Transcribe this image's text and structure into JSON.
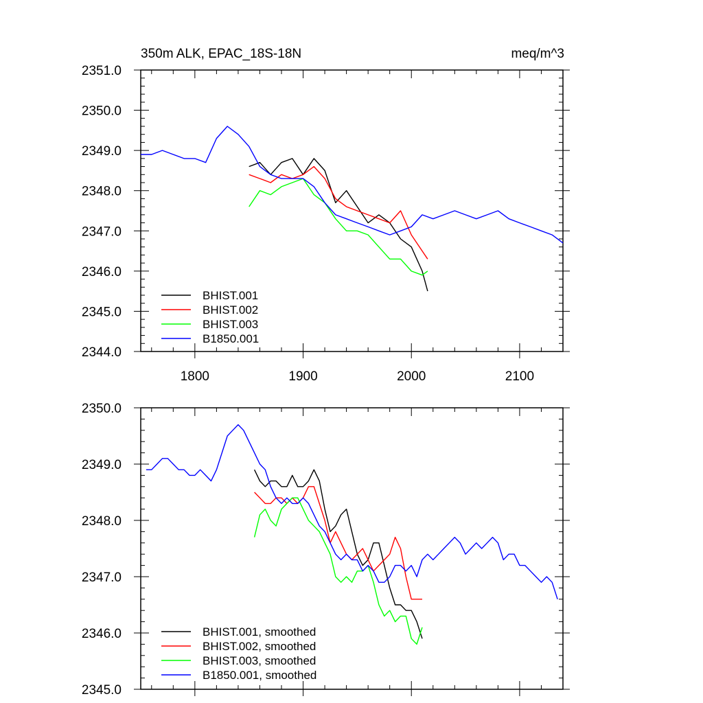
{
  "chart_data": [
    {
      "type": "line",
      "title": "350m ALK, EPAC_18S-18N",
      "units": "meq/m^3",
      "xlim": [
        1750,
        2140
      ],
      "ylim": [
        2344.0,
        2351.0
      ],
      "xticks": [
        1800,
        1900,
        2000,
        2100
      ],
      "xtick_labels": [
        "1800",
        "1900",
        "2000",
        "2100"
      ],
      "yticks": [
        2344.0,
        2345.0,
        2346.0,
        2347.0,
        2348.0,
        2349.0,
        2350.0,
        2351.0
      ],
      "ytick_labels": [
        "2344.0",
        "2345.0",
        "2346.0",
        "2347.0",
        "2348.0",
        "2349.0",
        "2350.0",
        "2351.0"
      ],
      "grid": false,
      "legend_position": "bottom-left",
      "series": [
        {
          "name": "BHIST.001",
          "color": "#000000",
          "x": [
            1850,
            1860,
            1870,
            1880,
            1890,
            1900,
            1910,
            1920,
            1930,
            1940,
            1950,
            1960,
            1970,
            1980,
            1990,
            2000,
            2010,
            2015
          ],
          "y": [
            2348.6,
            2348.7,
            2348.4,
            2348.7,
            2348.8,
            2348.4,
            2348.8,
            2348.5,
            2347.7,
            2348.0,
            2347.6,
            2347.2,
            2347.4,
            2347.2,
            2346.8,
            2346.6,
            2346.0,
            2345.5
          ]
        },
        {
          "name": "BHIST.002",
          "color": "#ff0000",
          "x": [
            1850,
            1860,
            1870,
            1880,
            1890,
            1900,
            1910,
            1920,
            1930,
            1940,
            1950,
            1960,
            1970,
            1980,
            1990,
            2000,
            2010,
            2015
          ],
          "y": [
            2348.4,
            2348.3,
            2348.2,
            2348.4,
            2348.3,
            2348.4,
            2348.6,
            2348.3,
            2347.8,
            2347.6,
            2347.5,
            2347.4,
            2347.3,
            2347.2,
            2347.5,
            2346.9,
            2346.5,
            2346.3
          ]
        },
        {
          "name": "BHIST.003",
          "color": "#00ff00",
          "x": [
            1850,
            1860,
            1870,
            1880,
            1890,
            1900,
            1910,
            1920,
            1930,
            1940,
            1950,
            1960,
            1970,
            1980,
            1990,
            2000,
            2010,
            2015
          ],
          "y": [
            2347.6,
            2348.0,
            2347.9,
            2348.1,
            2348.2,
            2348.3,
            2347.9,
            2347.7,
            2347.3,
            2347.0,
            2347.0,
            2346.9,
            2346.6,
            2346.3,
            2346.3,
            2346.0,
            2345.9,
            2346.0
          ]
        },
        {
          "name": "B1850.001",
          "color": "#0000ff",
          "x": [
            1750,
            1760,
            1770,
            1780,
            1790,
            1800,
            1810,
            1820,
            1830,
            1840,
            1850,
            1860,
            1870,
            1880,
            1890,
            1900,
            1910,
            1920,
            1930,
            1940,
            1950,
            1960,
            1970,
            1980,
            1990,
            2000,
            2010,
            2020,
            2030,
            2040,
            2050,
            2060,
            2070,
            2080,
            2090,
            2100,
            2110,
            2120,
            2130,
            2140
          ],
          "y": [
            2348.9,
            2348.9,
            2349.0,
            2348.9,
            2348.8,
            2348.8,
            2348.7,
            2349.3,
            2349.6,
            2349.4,
            2349.1,
            2348.6,
            2348.4,
            2348.3,
            2348.3,
            2348.3,
            2348.1,
            2347.7,
            2347.4,
            2347.3,
            2347.2,
            2347.1,
            2347.0,
            2346.9,
            2347.0,
            2347.1,
            2347.4,
            2347.3,
            2347.4,
            2347.5,
            2347.4,
            2347.3,
            2347.4,
            2347.5,
            2347.3,
            2347.2,
            2347.1,
            2347.0,
            2346.9,
            2346.7
          ]
        }
      ]
    },
    {
      "type": "line",
      "xlim": [
        1750,
        2140
      ],
      "ylim": [
        2345.0,
        2350.0
      ],
      "xticks": [
        1800,
        1900,
        2000,
        2100
      ],
      "yticks": [
        2345.0,
        2346.0,
        2347.0,
        2348.0,
        2349.0,
        2350.0
      ],
      "ytick_labels": [
        "2345.0",
        "2346.0",
        "2347.0",
        "2348.0",
        "2349.0",
        "2350.0"
      ],
      "grid": false,
      "legend_position": "bottom-left",
      "series": [
        {
          "name": "BHIST.001, smoothed",
          "color": "#000000",
          "x": [
            1855,
            1860,
            1865,
            1870,
            1875,
            1880,
            1885,
            1890,
            1895,
            1900,
            1905,
            1910,
            1915,
            1920,
            1925,
            1930,
            1935,
            1940,
            1945,
            1950,
            1955,
            1960,
            1965,
            1970,
            1975,
            1980,
            1985,
            1990,
            1995,
            2000,
            2005,
            2010
          ],
          "y": [
            2348.9,
            2348.7,
            2348.6,
            2348.7,
            2348.7,
            2348.6,
            2348.6,
            2348.8,
            2348.6,
            2348.6,
            2348.7,
            2348.9,
            2348.7,
            2348.2,
            2347.8,
            2347.9,
            2348.1,
            2348.2,
            2347.8,
            2347.4,
            2347.2,
            2347.3,
            2347.6,
            2347.6,
            2347.2,
            2346.8,
            2346.5,
            2346.5,
            2346.4,
            2346.4,
            2346.2,
            2345.9
          ]
        },
        {
          "name": "BHIST.002, smoothed",
          "color": "#ff0000",
          "x": [
            1855,
            1860,
            1865,
            1870,
            1875,
            1880,
            1885,
            1890,
            1895,
            1900,
            1905,
            1910,
            1915,
            1920,
            1925,
            1930,
            1935,
            1940,
            1945,
            1950,
            1955,
            1960,
            1965,
            1970,
            1975,
            1980,
            1985,
            1990,
            1995,
            2000,
            2005,
            2010
          ],
          "y": [
            2348.5,
            2348.4,
            2348.3,
            2348.3,
            2348.4,
            2348.4,
            2348.3,
            2348.4,
            2348.3,
            2348.4,
            2348.6,
            2348.6,
            2348.3,
            2348.0,
            2347.6,
            2347.8,
            2347.6,
            2347.4,
            2347.3,
            2347.4,
            2347.5,
            2347.3,
            2347.1,
            2347.2,
            2347.3,
            2347.4,
            2347.7,
            2347.5,
            2347.0,
            2346.6,
            2346.6,
            2346.6
          ]
        },
        {
          "name": "BHIST.003, smoothed",
          "color": "#00ff00",
          "x": [
            1855,
            1860,
            1865,
            1870,
            1875,
            1880,
            1885,
            1890,
            1895,
            1900,
            1905,
            1910,
            1915,
            1920,
            1925,
            1930,
            1935,
            1940,
            1945,
            1950,
            1955,
            1960,
            1965,
            1970,
            1975,
            1980,
            1985,
            1990,
            1995,
            2000,
            2005,
            2010
          ],
          "y": [
            2347.7,
            2348.1,
            2348.2,
            2348.0,
            2347.9,
            2348.2,
            2348.3,
            2348.4,
            2348.4,
            2348.2,
            2348.0,
            2347.9,
            2347.8,
            2347.6,
            2347.4,
            2347.0,
            2346.9,
            2347.0,
            2346.9,
            2347.1,
            2347.1,
            2347.2,
            2346.9,
            2346.5,
            2346.3,
            2346.4,
            2346.2,
            2346.3,
            2346.3,
            2345.9,
            2345.8,
            2346.1
          ]
        },
        {
          "name": "B1850.001, smoothed",
          "color": "#0000ff",
          "x": [
            1755,
            1760,
            1765,
            1770,
            1775,
            1780,
            1785,
            1790,
            1795,
            1800,
            1805,
            1810,
            1815,
            1820,
            1825,
            1830,
            1835,
            1840,
            1845,
            1850,
            1855,
            1860,
            1865,
            1870,
            1875,
            1880,
            1885,
            1890,
            1895,
            1900,
            1905,
            1910,
            1915,
            1920,
            1925,
            1930,
            1935,
            1940,
            1945,
            1950,
            1955,
            1960,
            1965,
            1970,
            1975,
            1980,
            1985,
            1990,
            1995,
            2000,
            2005,
            2010,
            2015,
            2020,
            2025,
            2030,
            2035,
            2040,
            2045,
            2050,
            2055,
            2060,
            2065,
            2070,
            2075,
            2080,
            2085,
            2090,
            2095,
            2100,
            2105,
            2110,
            2115,
            2120,
            2125,
            2130,
            2135
          ],
          "y": [
            2348.9,
            2348.9,
            2349.0,
            2349.1,
            2349.1,
            2349.0,
            2348.9,
            2348.9,
            2348.8,
            2348.8,
            2348.9,
            2348.8,
            2348.7,
            2348.9,
            2349.2,
            2349.5,
            2349.6,
            2349.7,
            2349.6,
            2349.4,
            2349.2,
            2349.0,
            2348.9,
            2348.6,
            2348.4,
            2348.3,
            2348.4,
            2348.3,
            2348.3,
            2348.4,
            2348.3,
            2348.1,
            2347.9,
            2347.8,
            2347.6,
            2347.4,
            2347.3,
            2347.4,
            2347.3,
            2347.3,
            2347.1,
            2347.2,
            2347.1,
            2346.9,
            2346.9,
            2347.0,
            2347.2,
            2347.2,
            2347.1,
            2347.2,
            2347.0,
            2347.3,
            2347.4,
            2347.3,
            2347.4,
            2347.5,
            2347.6,
            2347.7,
            2347.6,
            2347.4,
            2347.5,
            2347.6,
            2347.5,
            2347.6,
            2347.7,
            2347.6,
            2347.3,
            2347.4,
            2347.4,
            2347.2,
            2347.2,
            2347.1,
            2347.0,
            2346.9,
            2347.0,
            2346.9,
            2346.6
          ]
        }
      ]
    }
  ]
}
